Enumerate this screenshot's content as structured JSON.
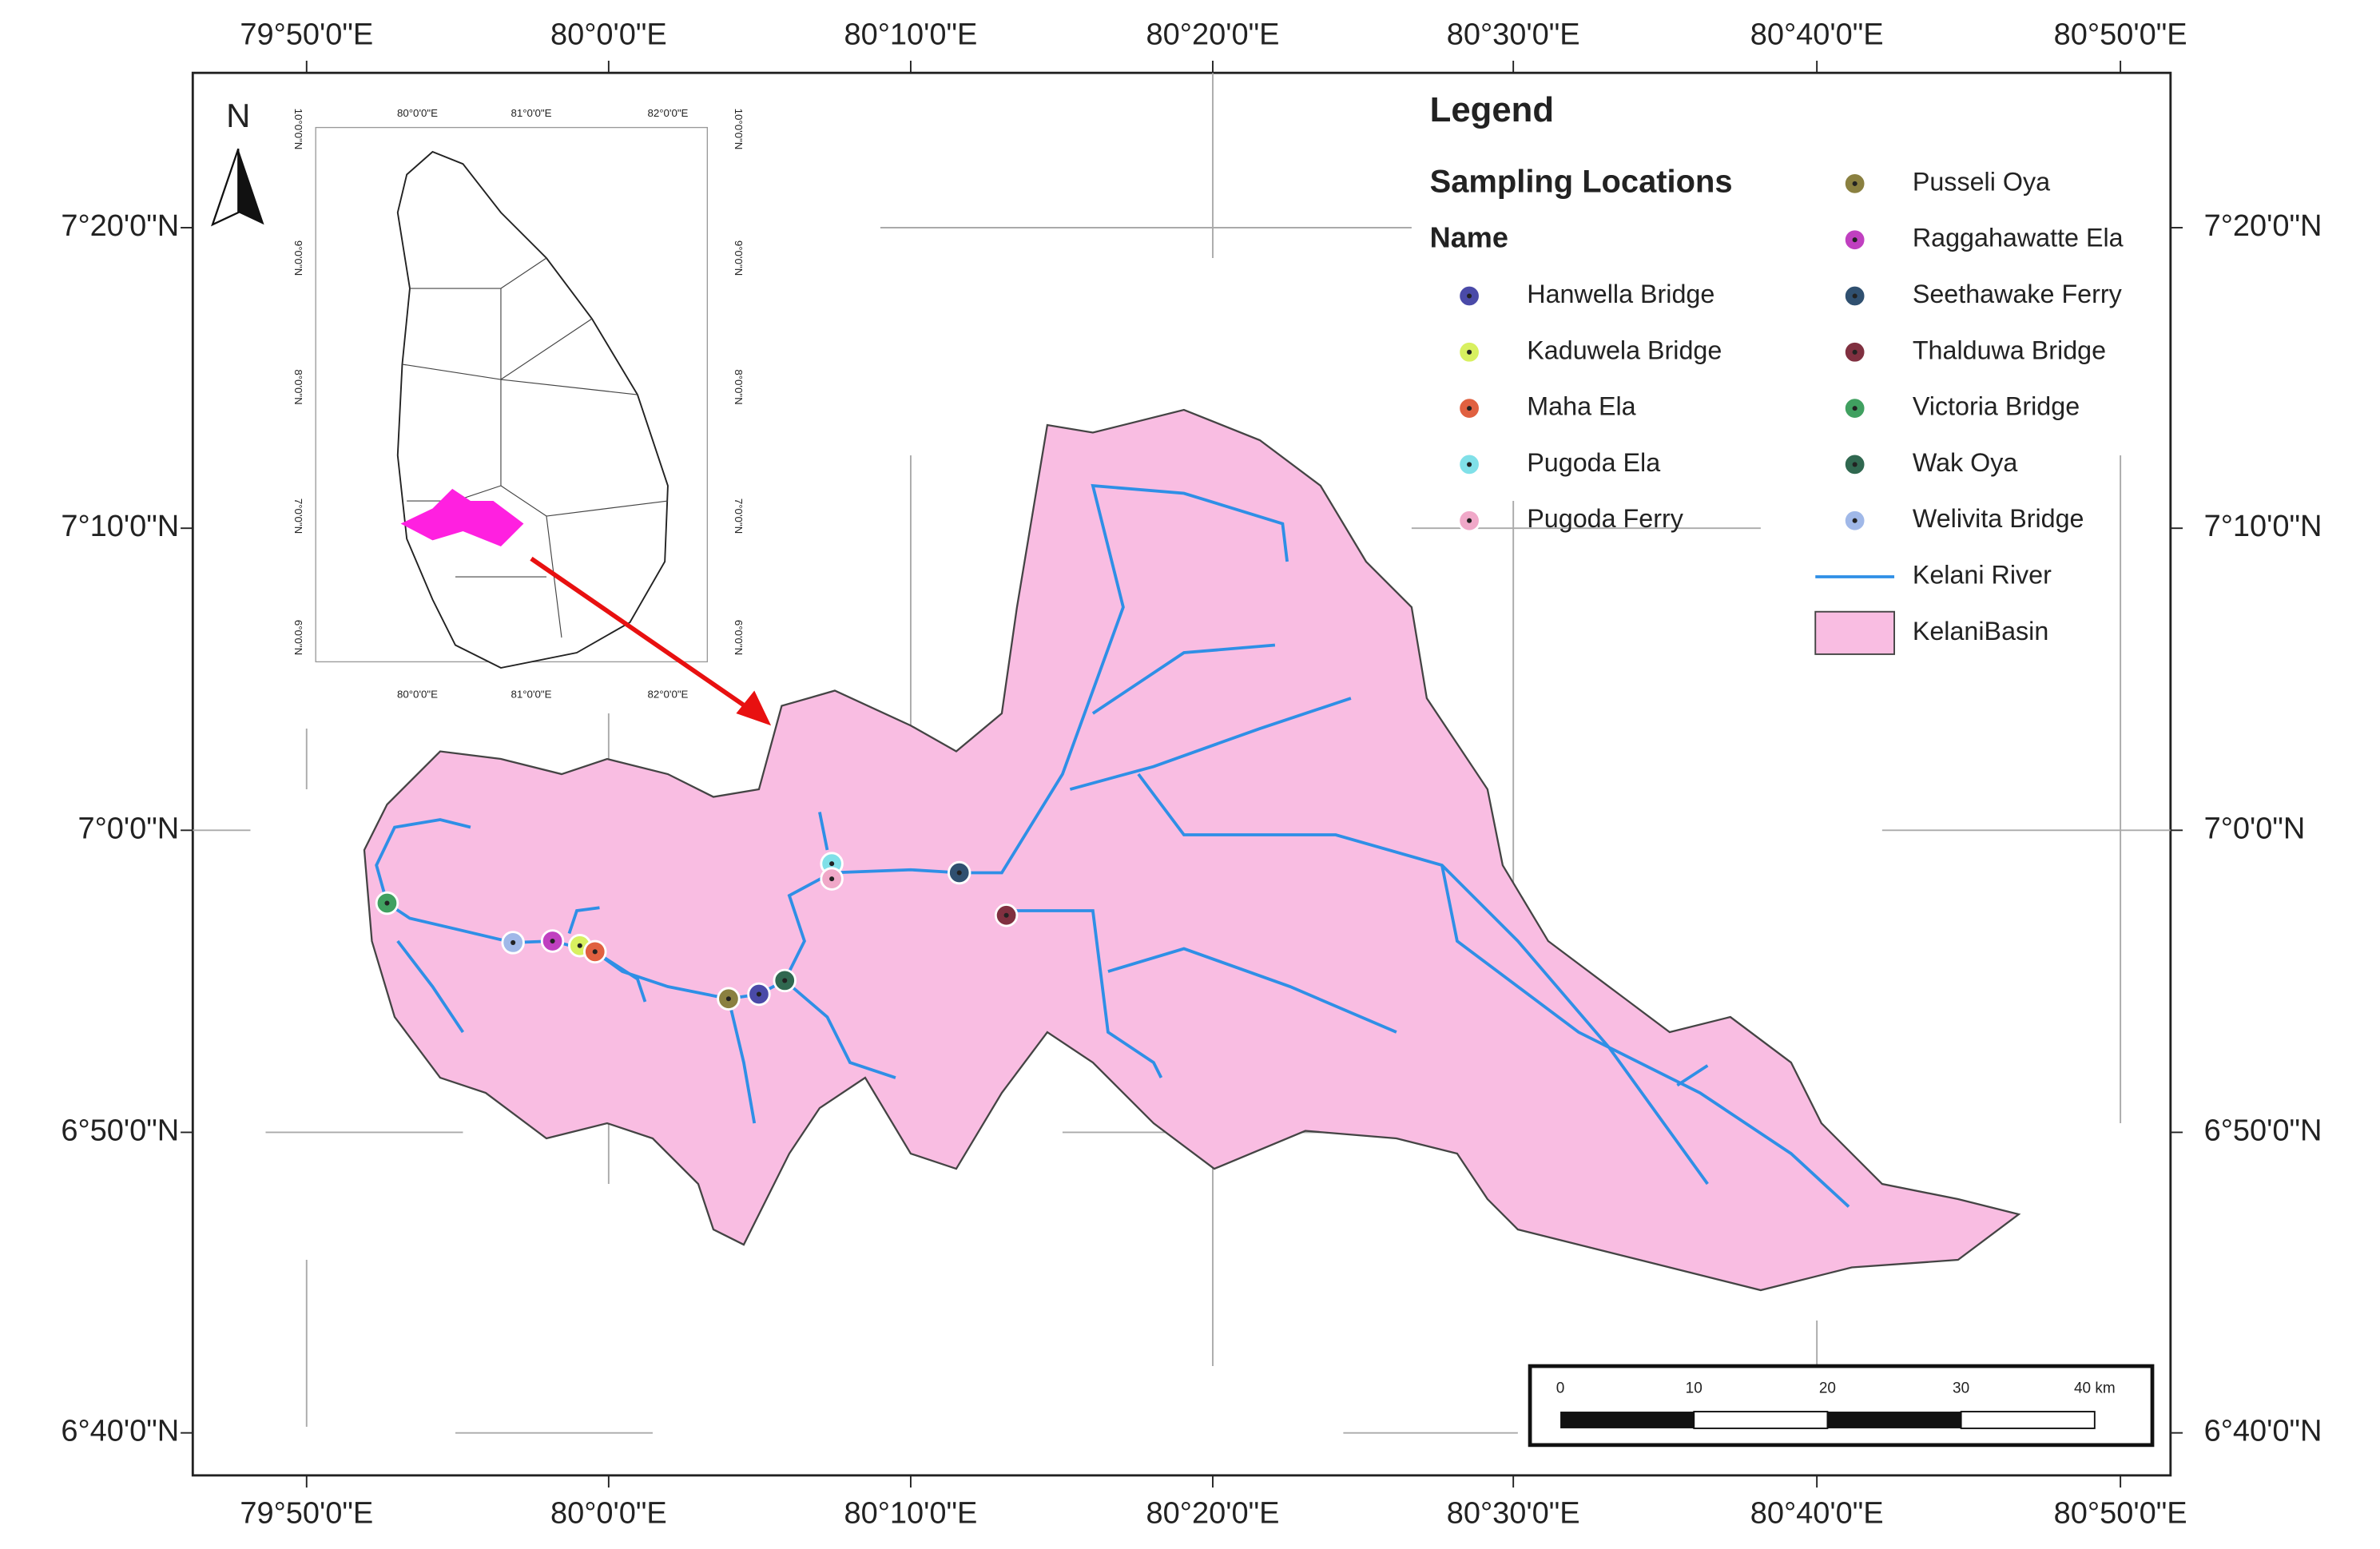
{
  "map": {
    "top_labels": [
      "79°50'0\"E",
      "80°0'0\"E",
      "80°10'0\"E",
      "80°20'0\"E",
      "80°30'0\"E",
      "80°40'0\"E",
      "80°50'0\"E"
    ],
    "bottom_labels": [
      "79°50'0\"E",
      "80°0'0\"E",
      "80°10'0\"E",
      "80°20'0\"E",
      "80°30'0\"E",
      "80°40'0\"E",
      "80°50'0\"E"
    ],
    "left_labels": [
      "7°20'0\"N",
      "7°10'0\"N",
      "7°0'0\"N",
      "6°50'0\"N",
      "6°40'0\"N"
    ],
    "right_labels": [
      "7°20'0\"N",
      "7°10'0\"N",
      "7°0'0\"N",
      "6°50'0\"N",
      "6°40'0\"N"
    ],
    "north": "N"
  },
  "inset": {
    "top_labels": [
      "80°0'0\"E",
      "81°0'0\"E",
      "82°0'0\"E"
    ],
    "bottom_labels": [
      "80°0'0\"E",
      "81°0'0\"E",
      "82°0'0\"E"
    ],
    "left_labels": [
      "10°0'0\"N",
      "9°0'0\"N",
      "8°0'0\"N",
      "7°0'0\"N",
      "6°0'0\"N"
    ],
    "right_labels": [
      "10°0'0\"N",
      "9°0'0\"N",
      "8°0'0\"N",
      "7°0'0\"N",
      "6°0'0\"N"
    ]
  },
  "legend": {
    "title": "Legend",
    "subtitle": "Sampling Locations",
    "field": "Name",
    "stations": [
      {
        "name": "Hanwella Bridge",
        "color": "#4a4aa8"
      },
      {
        "name": "Kaduwela Bridge",
        "color": "#d8f060"
      },
      {
        "name": "Maha Ela",
        "color": "#e06040"
      },
      {
        "name": "Pugoda Ela",
        "color": "#80e0e8"
      },
      {
        "name": "Pugoda Ferry",
        "color": "#f0a8c8"
      },
      {
        "name": "Pusseli Oya",
        "color": "#8a8040"
      },
      {
        "name": "Raggahawatte Ela",
        "color": "#c040c0"
      },
      {
        "name": "Seethawake Ferry",
        "color": "#305070"
      },
      {
        "name": "Thalduwa Bridge",
        "color": "#803040"
      },
      {
        "name": "Victoria Bridge",
        "color": "#40a060"
      },
      {
        "name": "Wak Oya",
        "color": "#306850"
      },
      {
        "name": "Welivita Bridge",
        "color": "#a0b8e8"
      }
    ],
    "river": "Kelani River",
    "basin": "KelaniBasin"
  },
  "scale_bar": {
    "labels": [
      "0",
      "10",
      "20",
      "30",
      "40 km"
    ]
  }
}
